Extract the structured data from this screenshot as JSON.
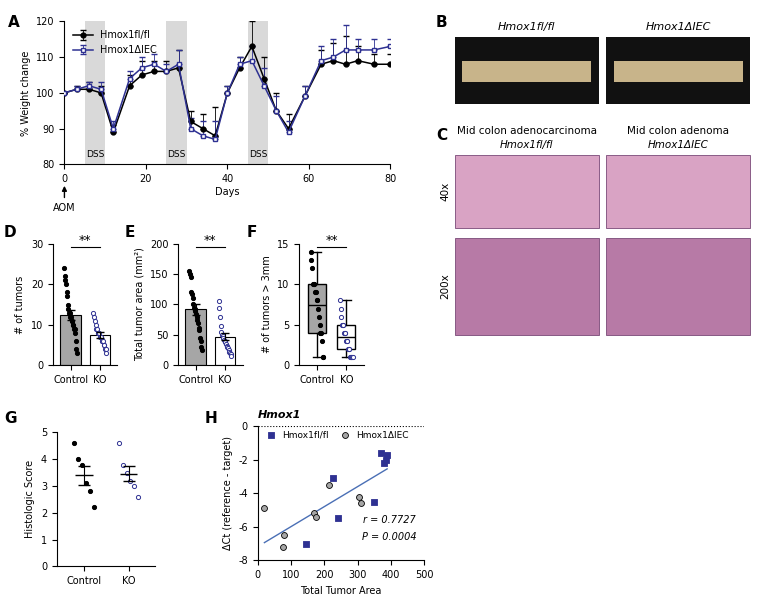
{
  "chart_data": [
    {
      "panel": "A",
      "type": "line",
      "xlabel": "Days",
      "ylabel": "% Weight change",
      "x": [
        0,
        3,
        6,
        9,
        12,
        16,
        19,
        22,
        25,
        28,
        31,
        34,
        37,
        40,
        43,
        46,
        49,
        52,
        55,
        59,
        63,
        66,
        69,
        72,
        76,
        80
      ],
      "series": [
        {
          "name": "Hmox1fl/fl",
          "color": "#000000",
          "marker": "o",
          "line_style": "solid",
          "values": [
            100,
            101,
            101,
            100,
            89,
            102,
            105,
            106,
            106,
            107,
            92,
            90,
            88,
            100,
            107,
            113,
            104,
            95,
            90,
            99,
            108,
            109,
            108,
            109,
            108,
            108
          ],
          "errors": [
            0,
            1,
            2,
            2,
            2,
            3,
            4,
            3,
            3,
            5,
            3,
            4,
            8,
            2,
            3,
            7,
            6,
            5,
            4,
            3,
            4,
            5,
            8,
            4,
            3,
            3
          ]
        },
        {
          "name": "Hmox1ΔIEC",
          "color": "#2e3192",
          "marker": "s",
          "line_style": "solid",
          "values": [
            100,
            101,
            102,
            101,
            90,
            104,
            107,
            108,
            106,
            108,
            90,
            88,
            87,
            100,
            108,
            109,
            102,
            95,
            89,
            99,
            109,
            110,
            112,
            112,
            112,
            113
          ],
          "errors": [
            0,
            1,
            1,
            2,
            2,
            2,
            3,
            3,
            2,
            4,
            3,
            4,
            5,
            2,
            2,
            4,
            5,
            4,
            3,
            3,
            4,
            5,
            7,
            3,
            3,
            2
          ]
        }
      ],
      "shaded": {
        "label": "DSS",
        "ranges": [
          [
            5,
            10
          ],
          [
            25,
            30
          ],
          [
            45,
            50
          ]
        ]
      },
      "annotation": {
        "text": "AOM",
        "x": 0
      },
      "xlim": [
        0,
        80
      ],
      "xticks": [
        0,
        20,
        40,
        60,
        80
      ],
      "ylim": [
        80,
        120
      ],
      "yticks": [
        80,
        90,
        100,
        110,
        120
      ],
      "legend": "upper left"
    },
    {
      "panel": "D",
      "type": "bar",
      "ylabel": "# of tumors",
      "categories": [
        "Control",
        "KO"
      ],
      "values": [
        12.5,
        7.5
      ],
      "errors": [
        1.2,
        0.7
      ],
      "colors": [
        "#a6a6a6",
        "#ffffff"
      ],
      "points": [
        [
          24,
          22,
          21,
          20,
          18,
          17,
          15,
          14,
          13,
          13,
          12,
          12,
          11,
          11,
          10,
          10,
          9,
          9,
          8,
          6,
          4,
          3
        ],
        [
          13,
          12,
          11,
          10,
          9,
          9,
          8,
          8,
          8,
          7,
          7,
          7,
          6,
          6,
          6,
          5,
          5,
          4,
          4,
          3
        ]
      ],
      "significance": "**",
      "ylim": [
        0,
        30
      ],
      "yticks": [
        0,
        10,
        20,
        30
      ]
    },
    {
      "panel": "E",
      "type": "bar",
      "ylabel": "Total tumor area (mm²)",
      "categories": [
        "Control",
        "KO"
      ],
      "values": [
        92,
        47
      ],
      "errors": [
        9,
        6
      ],
      "colors": [
        "#a6a6a6",
        "#ffffff"
      ],
      "points": [
        [
          155,
          150,
          145,
          120,
          118,
          110,
          100,
          95,
          92,
          90,
          85,
          80,
          75,
          70,
          62,
          58,
          45,
          40,
          30,
          25
        ],
        [
          105,
          95,
          80,
          65,
          55,
          50,
          48,
          45,
          42,
          40,
          38,
          35,
          32,
          30,
          28,
          25,
          22,
          20,
          18,
          15
        ]
      ],
      "significance": "**",
      "ylim": [
        0,
        200
      ],
      "yticks": [
        0,
        50,
        100,
        150,
        200
      ]
    },
    {
      "panel": "F",
      "type": "box",
      "ylabel": "# of tumors > 3mm",
      "categories": [
        "Control",
        "KO"
      ],
      "boxes": [
        {
          "median": 7.5,
          "q1": 4,
          "q3": 10,
          "whislo": 1,
          "whishi": 14
        },
        {
          "median": 3.5,
          "q1": 2,
          "q3": 5,
          "whislo": 1,
          "whishi": 8
        }
      ],
      "colors": [
        "#a6a6a6",
        "#ffffff"
      ],
      "points": [
        [
          14,
          13,
          12,
          10,
          10,
          10,
          9,
          9,
          8,
          8,
          7,
          6,
          5,
          4,
          4,
          3,
          1,
          1
        ],
        [
          8,
          7,
          6,
          5,
          5,
          5,
          4,
          4,
          4,
          3,
          3,
          3,
          2,
          2,
          2,
          1,
          1,
          1,
          1,
          1
        ]
      ],
      "significance": "**",
      "ylim": [
        0,
        15
      ],
      "yticks": [
        0,
        5,
        10,
        15
      ]
    },
    {
      "panel": "G",
      "type": "dot",
      "ylabel": "Histologic Score",
      "categories": [
        "Control",
        "KO"
      ],
      "values": [
        3.4,
        3.45
      ],
      "errors": [
        0.35,
        0.28
      ],
      "points": [
        [
          4.6,
          4.0,
          3.8,
          3.1,
          2.8,
          2.2
        ],
        [
          4.6,
          3.8,
          3.5,
          3.2,
          3.0,
          2.6
        ]
      ],
      "ylim": [
        0,
        5
      ],
      "yticks": [
        0,
        1,
        2,
        3,
        4,
        5
      ]
    },
    {
      "panel": "H",
      "type": "scatter",
      "title": "Hmox1",
      "xlabel": "Total Tumor Area",
      "ylabel": "ΔCt (reference - target)",
      "series": [
        {
          "name": "Hmox1fl/fl",
          "color": "#2e3192",
          "marker": "s",
          "x": [
            370,
            385,
            388,
            380,
            350,
            240,
            225,
            145
          ],
          "values": [
            -1.6,
            -2.0,
            -1.7,
            -2.2,
            -4.5,
            -5.5,
            -3.1,
            -7.0
          ]
        },
        {
          "name": "Hmox1ΔIEC",
          "color": "#a6a6a6",
          "marker": "o",
          "x": [
            20,
            75,
            80,
            170,
            175,
            215,
            310,
            305
          ],
          "values": [
            -4.9,
            -7.2,
            -6.5,
            -5.2,
            -5.4,
            -3.5,
            -4.6,
            -4.2
          ]
        }
      ],
      "annotations": [
        "r = 0.7727",
        "P = 0.0004"
      ],
      "xlim": [
        0,
        500
      ],
      "xticks": [
        0,
        100,
        200,
        300,
        400,
        500
      ],
      "ylim": [
        -8,
        0
      ],
      "yticks": [
        -8,
        -6,
        -4,
        -2,
        0
      ],
      "legend": "upper left"
    }
  ],
  "images": [
    {
      "panel": "B",
      "labels": [
        "Hmox1fl/fl",
        "Hmox1ΔIEC"
      ]
    },
    {
      "panel": "C",
      "columns": [
        {
          "title": "Mid colon adenocarcinoma",
          "genotype": "Hmox1fl/fl"
        },
        {
          "title": "Mid colon adenoma",
          "genotype": "Hmox1ΔIEC"
        }
      ],
      "rows": [
        "40x",
        "200x"
      ]
    }
  ]
}
